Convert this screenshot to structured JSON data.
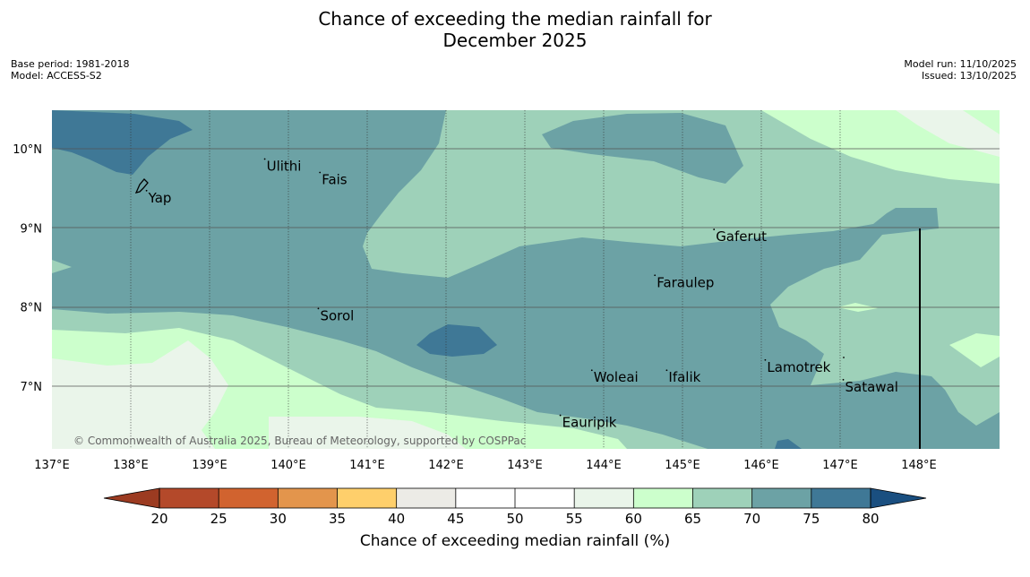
{
  "title_line1": "Chance of exceeding the median rainfall for",
  "title_line2": "December 2025",
  "meta_left": {
    "base_period": "Base period: 1981-2018",
    "model": "Model: ACCESS-S2"
  },
  "meta_right": {
    "model_run": "Model run: 11/10/2025",
    "issued": "Issued: 13/10/2025"
  },
  "copyright": "© Commonwealth of Australia 2025, Bureau of Meteorology, supported by COSPPac",
  "longitude_labels": [
    "137°E",
    "138°E",
    "139°E",
    "140°E",
    "141°E",
    "142°E",
    "143°E",
    "144°E",
    "145°E",
    "146°E",
    "147°E",
    "148°E"
  ],
  "latitude_labels": [
    "10°N",
    "9°N",
    "8°N",
    "7°N"
  ],
  "places": [
    {
      "name": "Ulithi",
      "lon": 139.7,
      "lat": 9.87
    },
    {
      "name": "Fais",
      "lon": 140.4,
      "lat": 9.7
    },
    {
      "name": "Yap",
      "lon": 138.2,
      "lat": 9.47
    },
    {
      "name": "Gaferut",
      "lon": 145.4,
      "lat": 8.98
    },
    {
      "name": "Faraulep",
      "lon": 144.65,
      "lat": 8.4
    },
    {
      "name": "Sorol",
      "lon": 140.38,
      "lat": 7.98
    },
    {
      "name": "Lamotrek",
      "lon": 146.05,
      "lat": 7.33
    },
    {
      "name": "Woleai",
      "lon": 143.85,
      "lat": 7.2
    },
    {
      "name": "Ifalik",
      "lon": 144.8,
      "lat": 7.2
    },
    {
      "name": "Satawal",
      "lon": 147.04,
      "lat": 7.08
    },
    {
      "name": "Eauripik",
      "lon": 143.45,
      "lat": 6.63
    }
  ],
  "colorbar": {
    "label": "Chance of exceeding median rainfall (%)",
    "ticks": [
      "20",
      "25",
      "30",
      "35",
      "40",
      "45",
      "50",
      "55",
      "60",
      "65",
      "70",
      "75",
      "80"
    ],
    "colors": [
      "#b4492a",
      "#d1632f",
      "#e3954c",
      "#fecf6b",
      "#ecebe6",
      "#ffffff",
      "#ffffff",
      "#eaf5ea",
      "#ccffcc",
      "#9ed1b9",
      "#6ca2a5",
      "#3f7896"
    ],
    "under_color": "#9c3b21",
    "over_color": "#1a4f80"
  }
}
